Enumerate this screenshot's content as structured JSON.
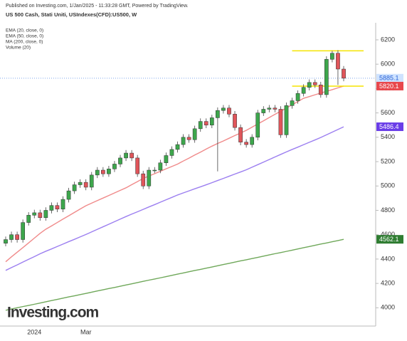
{
  "header": {
    "published": "Published on Investing.com, 1/Jan/2025 - 11:33:28 GMT, Powered by TradingView.",
    "logo": "Investing.com"
  },
  "chart_data": {
    "type": "candlestick",
    "title": "US 500 Cash, Stati Uniti, USIndexes(CFD):US500, W",
    "indicators": [
      "EMA (20, close, 0)",
      "EMA (50, close, 0)",
      "MA (200, close, 0)",
      "Volume (20)"
    ],
    "categories": [
      null,
      null,
      null,
      null,
      null,
      "2024",
      null,
      null,
      null,
      null,
      null,
      null,
      null,
      null,
      "Mar",
      null,
      null,
      null,
      null,
      null,
      null,
      null,
      null,
      null,
      null,
      null,
      null,
      null,
      null,
      null,
      null,
      null,
      null,
      null,
      null,
      null,
      null,
      null,
      null,
      null,
      null,
      null,
      null,
      null,
      null,
      null,
      null,
      null,
      null,
      null,
      null,
      null,
      null,
      null,
      null,
      null,
      null,
      null,
      null,
      null
    ],
    "open": [
      4530,
      4560,
      4600,
      4560,
      4700,
      4760,
      4780,
      4740,
      4800,
      4840,
      4810,
      4890,
      4960,
      5010,
      5030,
      4990,
      5090,
      5130,
      5100,
      5140,
      5180,
      5230,
      5270,
      5230,
      5100,
      5000,
      5130,
      5130,
      5190,
      5250,
      5300,
      5340,
      5400,
      5380,
      5470,
      5530,
      5500,
      5560,
      5620,
      5640,
      5590,
      5480,
      5360,
      5340,
      5400,
      5600,
      5630,
      5640,
      5630,
      5420,
      5660,
      5700,
      5760,
      5810,
      5850,
      5830,
      5750,
      6040,
      6090,
      5960
    ],
    "high": [
      4585,
      4625,
      4625,
      4725,
      4785,
      4805,
      4805,
      4825,
      4865,
      4865,
      4915,
      4985,
      5035,
      5055,
      5055,
      5115,
      5155,
      5155,
      5165,
      5205,
      5255,
      5295,
      5295,
      5255,
      5125,
      5155,
      5155,
      5215,
      5275,
      5325,
      5365,
      5425,
      5425,
      5495,
      5555,
      5555,
      5585,
      5645,
      5665,
      5665,
      5615,
      5505,
      5385,
      5425,
      5625,
      5655,
      5665,
      5665,
      5655,
      5685,
      5725,
      5785,
      5835,
      5875,
      5875,
      5855,
      6065,
      6110,
      6115,
      5985
    ],
    "low": [
      4505,
      4535,
      4535,
      4535,
      4675,
      4735,
      4715,
      4715,
      4775,
      4785,
      4785,
      4865,
      4935,
      4985,
      4965,
      4965,
      5065,
      5075,
      5075,
      5115,
      5155,
      5205,
      5205,
      5075,
      4975,
      4975,
      5105,
      5105,
      5165,
      5225,
      5275,
      5315,
      5355,
      5355,
      5445,
      5475,
      5475,
      5120,
      5595,
      5565,
      5455,
      5335,
      5315,
      5315,
      5375,
      5575,
      5605,
      5605,
      5395,
      5395,
      5635,
      5675,
      5735,
      5785,
      5805,
      5725,
      5725,
      6015,
      5830,
      5860
    ],
    "close": [
      4560,
      4600,
      4560,
      4700,
      4760,
      4780,
      4740,
      4800,
      4840,
      4810,
      4890,
      4960,
      5010,
      5030,
      4990,
      5090,
      5130,
      5100,
      5140,
      5180,
      5230,
      5270,
      5230,
      5100,
      5000,
      5130,
      5130,
      5190,
      5250,
      5300,
      5340,
      5400,
      5380,
      5470,
      5530,
      5500,
      5560,
      5620,
      5640,
      5590,
      5480,
      5360,
      5340,
      5400,
      5600,
      5630,
      5640,
      5630,
      5420,
      5660,
      5700,
      5760,
      5810,
      5850,
      5830,
      5750,
      6040,
      6090,
      5960,
      5885
    ],
    "up_color": "#3da64c",
    "down_color": "#e0555a",
    "series": [
      {
        "color": "#f08a8a",
        "values": [
          4378,
          4418,
          4456,
          4494,
          4533,
          4572,
          4611,
          4645,
          4672,
          4700,
          4728,
          4755,
          4783,
          4811,
          4838,
          4859,
          4880,
          4901,
          4922,
          4943,
          4964,
          4985,
          5011,
          5036,
          5062,
          5082,
          5101,
          5121,
          5141,
          5160,
          5180,
          5205,
          5229,
          5254,
          5278,
          5303,
          5327,
          5349,
          5370,
          5392,
          5414,
          5435,
          5457,
          5483,
          5509,
          5535,
          5562,
          5588,
          5614,
          5640,
          5667,
          5693,
          5720,
          5734,
          5749,
          5763,
          5777,
          5791,
          5806,
          5820
        ]
      },
      {
        "color": "#9c7ff0",
        "values": [
          4307,
          4330,
          4352,
          4375,
          4398,
          4420,
          4443,
          4464,
          4483,
          4503,
          4523,
          4543,
          4562,
          4582,
          4602,
          4623,
          4644,
          4665,
          4686,
          4707,
          4728,
          4749,
          4769,
          4788,
          4808,
          4828,
          4847,
          4867,
          4887,
          4906,
          4926,
          4943,
          4960,
          4977,
          4993,
          5010,
          5027,
          5045,
          5062,
          5080,
          5098,
          5115,
          5133,
          5154,
          5175,
          5196,
          5217,
          5238,
          5259,
          5280,
          5300,
          5319,
          5339,
          5359,
          5378,
          5398,
          5420,
          5442,
          5464,
          5486
        ]
      },
      {
        "color": "#6fa85a",
        "values": [
          3980,
          3990,
          4000,
          4010,
          4019,
          4029,
          4039,
          4049,
          4059,
          4069,
          4079,
          4089,
          4098,
          4108,
          4118,
          4128,
          4138,
          4148,
          4158,
          4167,
          4177,
          4187,
          4197,
          4207,
          4217,
          4227,
          4236,
          4246,
          4256,
          4266,
          4276,
          4286,
          4296,
          4306,
          4315,
          4325,
          4335,
          4345,
          4355,
          4365,
          4375,
          4385,
          4394,
          4404,
          4414,
          4424,
          4434,
          4444,
          4453,
          4463,
          4473,
          4483,
          4493,
          4503,
          4513,
          4523,
          4532,
          4542,
          4552,
          4562
        ]
      }
    ],
    "price_labels": [
      {
        "value": 5885.1,
        "color": "#cfe3ff",
        "text_color": "#2a62d6"
      },
      {
        "value": 5820.1,
        "color": "#e8474c",
        "text_color": "#ffffff"
      },
      {
        "value": 5486.4,
        "color": "#6a3de8",
        "text_color": "#ffffff"
      },
      {
        "value": 4562.1,
        "color": "#2f7d32",
        "text_color": "#ffffff"
      }
    ],
    "hlines": [
      {
        "value": 6110,
        "color": "#f5e400"
      },
      {
        "value": 5820,
        "color": "#f5e400"
      }
    ],
    "ylim": [
      3850,
      6340
    ],
    "yticks": [
      4000,
      4200,
      4400,
      4600,
      4800,
      5000,
      5200,
      5400,
      5600,
      5800,
      6000,
      6200
    ],
    "grid": false
  }
}
